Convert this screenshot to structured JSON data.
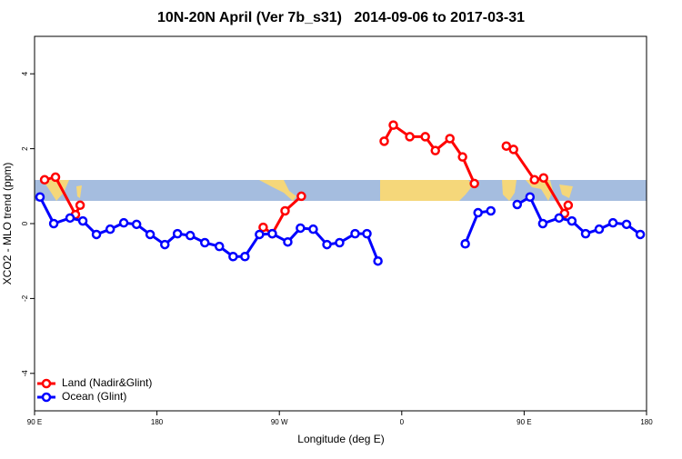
{
  "chart_data": {
    "type": "line",
    "title": "10N-20N April (Ver 7b_s31)   2014-09-06 to 2017-03-31",
    "xlabel": "Longitude (deg E)",
    "ylabel": "XCO2 - MLO trend (ppm)",
    "xlim": [
      90,
      540
    ],
    "ylim": [
      -5,
      5
    ],
    "xticks": [
      {
        "value": 90,
        "label": "90 E"
      },
      180,
      {
        "value": 270,
        "label": "90 W"
      },
      {
        "value": 360,
        "label": "0"
      },
      {
        "value": 450,
        "label": "90 E"
      },
      {
        "value": 540,
        "label": "180"
      }
    ],
    "yticks": [
      -4,
      -2,
      0,
      2,
      4
    ],
    "legend": "bottom-left",
    "series": [
      {
        "name": "Land (Nadir&Glint)",
        "color": "#ff0000",
        "x": [
          97.4,
          105.4,
          120.1,
          123.5,
          null,
          258.1,
          264.8,
          274.2,
          286.2,
          null,
          347.1,
          353.8,
          365.9,
          377.3,
          384.7,
          395.4,
          404.7,
          413.4,
          null,
          436.9,
          442.2,
          457.6,
          464.3,
          479.7,
          482.4
        ],
        "values": [
          1.17,
          1.24,
          0.24,
          0.49,
          null,
          -0.1,
          -0.27,
          0.34,
          0.73,
          null,
          2.2,
          2.63,
          2.32,
          2.32,
          1.95,
          2.27,
          1.78,
          1.07,
          null,
          2.07,
          1.98,
          1.17,
          1.22,
          0.27,
          0.49
        ]
      },
      {
        "name": "Ocean (Glint)",
        "color": "#0000ff",
        "x": [
          94.0,
          104.1,
          116.1,
          125.5,
          135.5,
          145.6,
          155.6,
          165.0,
          175.0,
          185.8,
          195.1,
          204.5,
          215.2,
          225.9,
          236.0,
          244.7,
          255.4,
          264.8,
          276.2,
          285.5,
          294.9,
          305.0,
          314.3,
          325.7,
          334.4,
          342.5,
          null,
          406.7,
          416.1,
          425.5,
          null,
          444.9,
          454.3,
          463.7,
          475.7,
          485.1,
          495.2,
          505.2,
          515.3,
          525.3,
          535.4
        ],
        "values": [
          0.71,
          0,
          0.15,
          0.07,
          -0.29,
          -0.15,
          0.02,
          -0.02,
          -0.29,
          -0.56,
          -0.27,
          -0.32,
          -0.51,
          -0.61,
          -0.88,
          -0.88,
          -0.29,
          -0.27,
          -0.49,
          -0.12,
          -0.15,
          -0.56,
          -0.51,
          -0.27,
          -0.27,
          -1.0,
          null,
          -0.54,
          0.29,
          0.34,
          null,
          0.51,
          0.71,
          0,
          0.15,
          0.07,
          -0.27,
          -0.15,
          0.02,
          -0.02,
          -0.29
        ]
      }
    ]
  }
}
